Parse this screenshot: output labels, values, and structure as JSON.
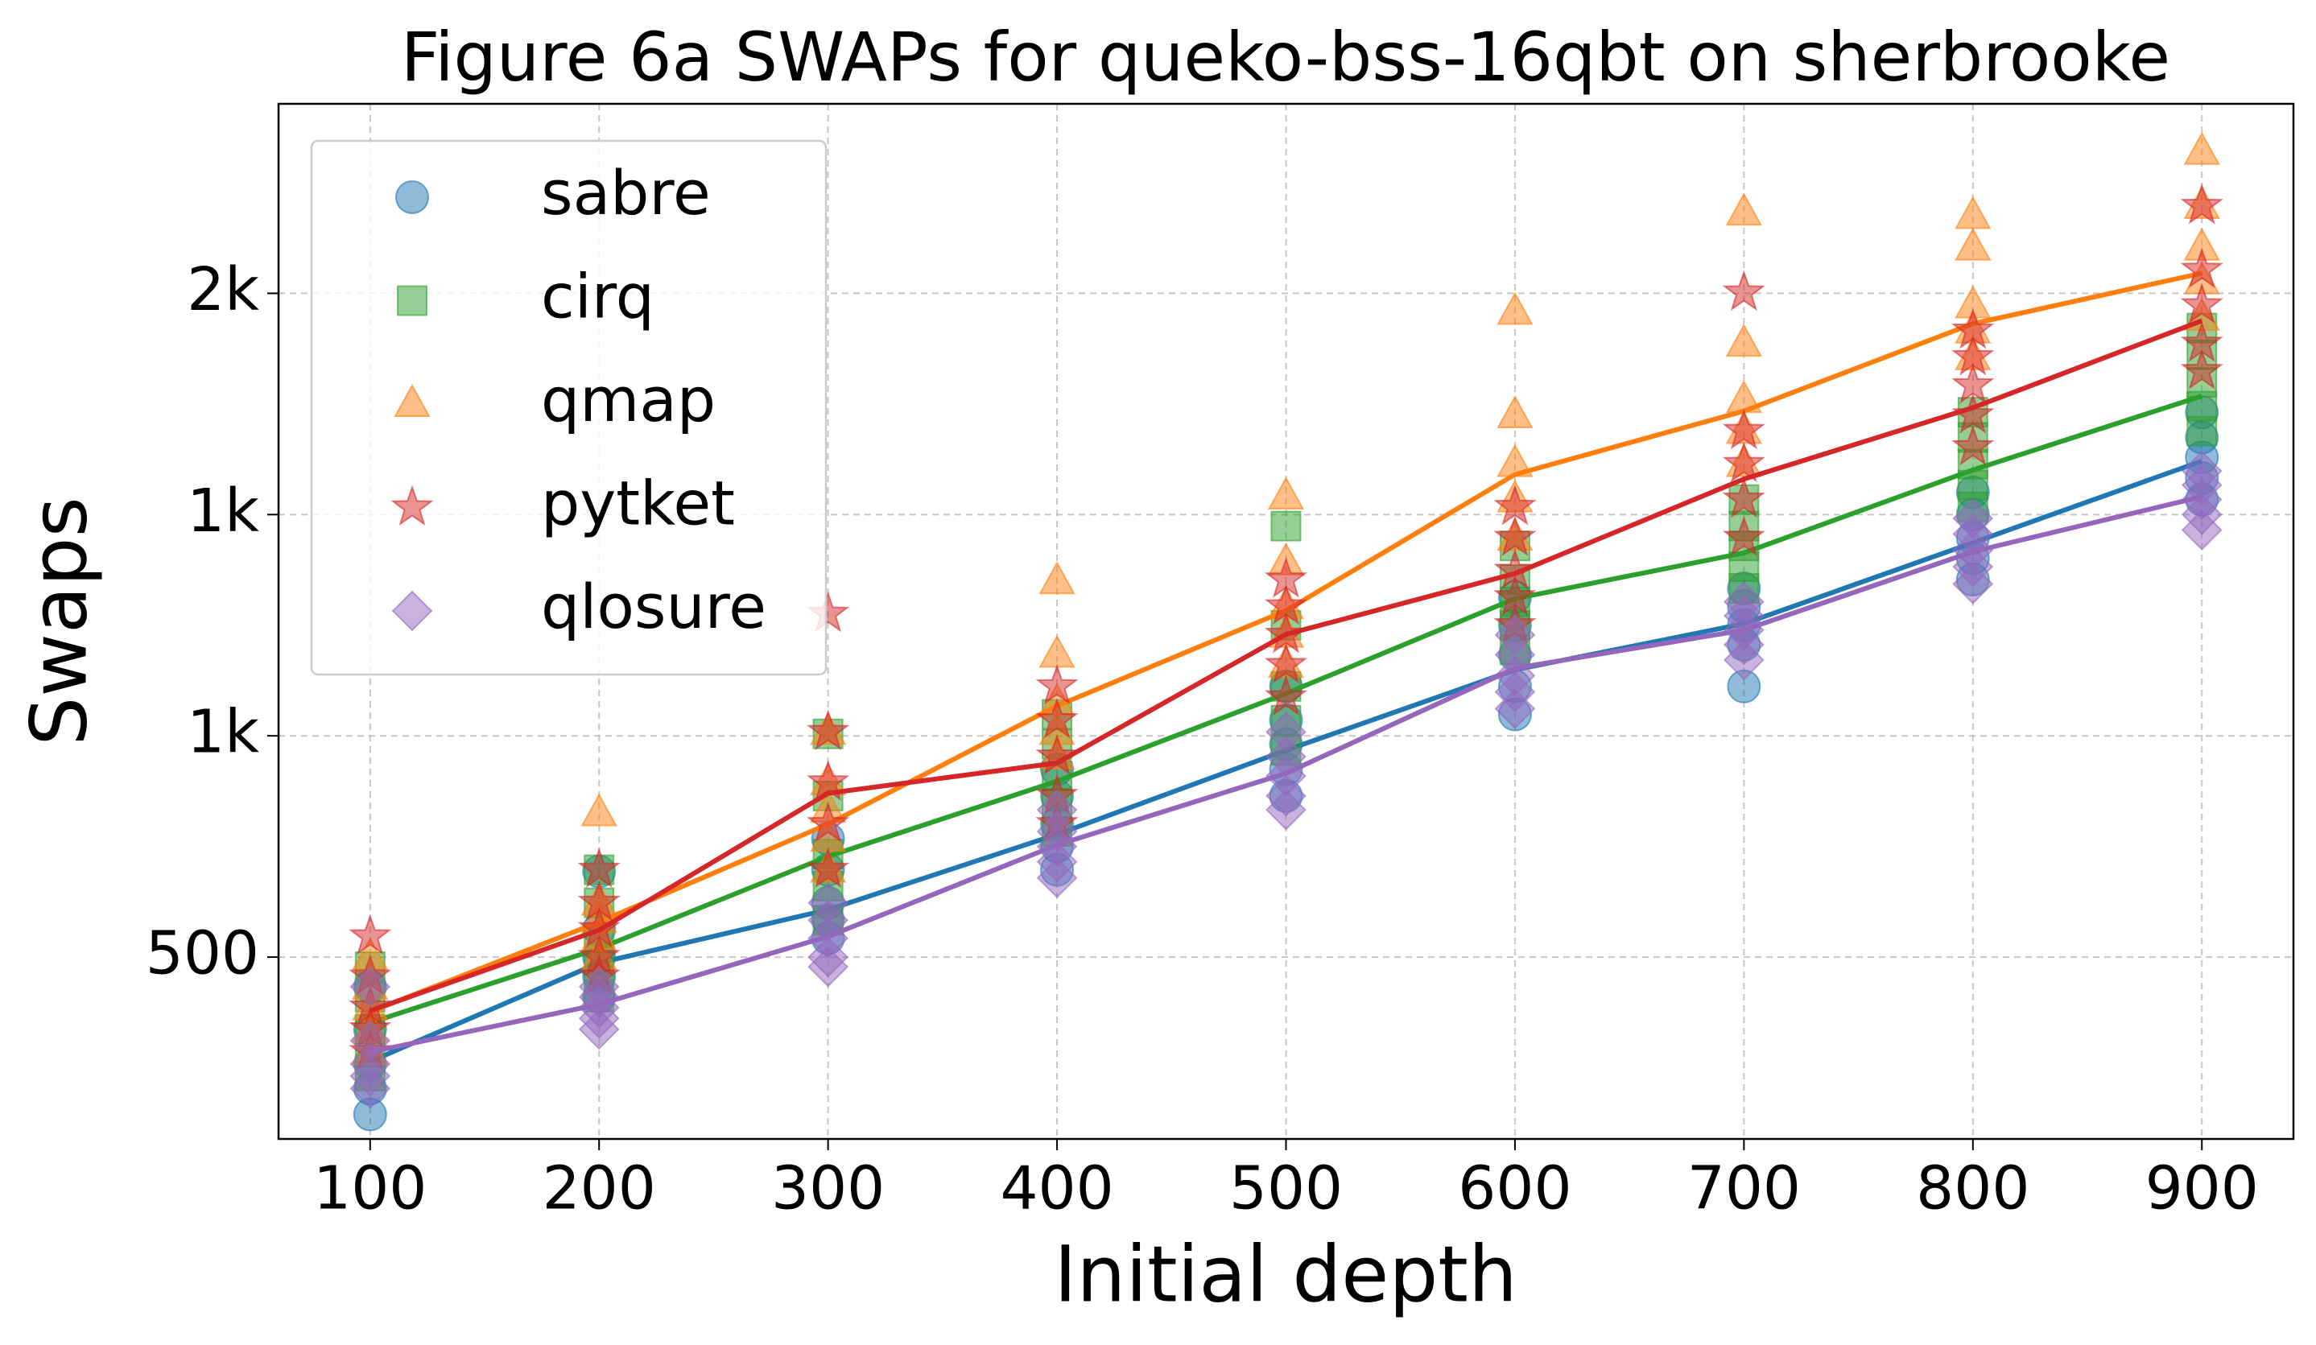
{
  "chart_data": {
    "type": "scatter-line",
    "title": "Figure 6a SWAPs for queko-bss-16qbt on sherbrooke",
    "x_label": "Initial depth",
    "y_label": "Swaps",
    "x": [
      100,
      200,
      300,
      400,
      500,
      600,
      700,
      800,
      900
    ],
    "xlim": [
      60,
      940
    ],
    "xticks": [
      100,
      200,
      300,
      400,
      500,
      600,
      700,
      800,
      900
    ],
    "ylim": [
      342,
      2971
    ],
    "y_scale": "log",
    "yticks": [
      500,
      {
        "value": 793.7,
        "label": "1k"
      },
      {
        "value": 1259.9,
        "label": "1k"
      },
      {
        "value": 2000,
        "label": "2k"
      }
    ],
    "grid": true,
    "legend": "upper left",
    "series": [
      {
        "name": "sabre",
        "color": "#1f77b4",
        "marker": "o",
        "values": [
          402,
          494,
          552,
          646,
          770,
          911,
          1003,
          1188,
          1409
        ],
        "points": {
          "x": [
            100,
            100,
            100,
            100,
            100,
            200,
            200,
            200,
            200,
            200,
            300,
            300,
            300,
            300,
            300,
            400,
            400,
            400,
            400,
            400,
            500,
            500,
            500,
            500,
            500,
            600,
            600,
            600,
            600,
            600,
            700,
            700,
            700,
            700,
            700,
            800,
            800,
            800,
            800,
            800,
            900,
            900,
            900,
            900,
            900
          ],
          "y": [
            360,
            380,
            400,
            430,
            470,
            460,
            480,
            500,
            530,
            598,
            520,
            540,
            560,
            600,
            640,
            600,
            630,
            660,
            700,
            740,
            700,
            740,
            780,
            820,
            880,
            830,
            880,
            940,
            1000,
            1060,
            880,
            960,
            1000,
            1040,
            1080,
            1100,
            1150,
            1200,
            1260,
            1320,
            1300,
            1360,
            1420,
            1480,
            1560
          ]
        }
      },
      {
        "name": "cirq",
        "color": "#2ca02c",
        "marker": "s",
        "values": [
          436,
          509,
          617,
          722,
          867,
          1057,
          1163,
          1383,
          1614
        ],
        "points": {
          "x": [
            100,
            100,
            100,
            100,
            100,
            200,
            200,
            200,
            200,
            200,
            300,
            300,
            300,
            300,
            300,
            400,
            400,
            400,
            400,
            400,
            500,
            500,
            500,
            500,
            500,
            600,
            600,
            600,
            600,
            600,
            700,
            700,
            700,
            700,
            700,
            800,
            800,
            800,
            800,
            800,
            900,
            900,
            900,
            900,
            900
          ],
          "y": [
            390,
            410,
            430,
            460,
            490,
            460,
            490,
            520,
            560,
            600,
            540,
            580,
            620,
            700,
            797,
            650,
            690,
            730,
            780,
            830,
            770,
            820,
            880,
            1000,
            1230,
            950,
            1000,
            1050,
            1100,
            1180,
            1080,
            1130,
            1180,
            1230,
            1300,
            1280,
            1340,
            1400,
            1480,
            1560,
            1500,
            1580,
            1660,
            1760,
            1860
          ]
        }
      },
      {
        "name": "qmap",
        "color": "#ff7f0e",
        "marker": "^",
        "values": [
          446,
          538,
          660,
          845,
          1031,
          1370,
          1564,
          1877,
          2086
        ],
        "points": {
          "x": [
            100,
            100,
            100,
            100,
            100,
            200,
            200,
            200,
            200,
            200,
            300,
            300,
            300,
            300,
            300,
            400,
            400,
            400,
            400,
            400,
            500,
            500,
            500,
            500,
            500,
            600,
            600,
            600,
            600,
            600,
            700,
            700,
            700,
            700,
            700,
            800,
            800,
            800,
            800,
            800,
            900,
            900,
            900,
            900,
            900
          ],
          "y": [
            410,
            430,
            450,
            470,
            500,
            500,
            520,
            540,
            560,
            675,
            600,
            640,
            680,
            720,
            800,
            760,
            800,
            850,
            940,
            1096,
            920,
            980,
            1040,
            1140,
            1308,
            1200,
            1300,
            1400,
            1550,
            1924,
            1400,
            1500,
            1600,
            1800,
            2367,
            1750,
            1850,
            1950,
            2200,
            2350,
            1900,
            2050,
            2200,
            2400,
            2687
          ]
        }
      },
      {
        "name": "pytket",
        "color": "#d62728",
        "marker": "*",
        "values": [
          447,
          529,
          704,
          750,
          981,
          1114,
          1357,
          1575,
          1889
        ],
        "points": {
          "x": [
            100,
            100,
            100,
            100,
            100,
            200,
            200,
            200,
            200,
            200,
            300,
            300,
            300,
            300,
            300,
            400,
            400,
            400,
            400,
            400,
            500,
            500,
            500,
            500,
            500,
            600,
            600,
            600,
            600,
            600,
            700,
            700,
            700,
            700,
            700,
            800,
            800,
            800,
            800,
            800,
            900,
            900,
            900,
            900,
            900
          ],
          "y": [
            410,
            430,
            450,
            480,
            522,
            480,
            500,
            530,
            560,
            600,
            600,
            660,
            720,
            800,
            1024,
            660,
            700,
            760,
            820,
            880,
            860,
            920,
            980,
            1040,
            1100,
            1000,
            1060,
            1120,
            1200,
            1280,
            1200,
            1300,
            1400,
            1500,
            2003,
            1450,
            1550,
            1650,
            1750,
            1850,
            1700,
            1800,
            1950,
            2100,
            2400
          ]
        }
      },
      {
        "name": "qlosure",
        "color": "#9467bd",
        "marker": "D",
        "values": [
          410,
          453,
          522,
          632,
          734,
          914,
          990,
          1166,
          1308
        ],
        "points": {
          "x": [
            100,
            100,
            100,
            100,
            100,
            200,
            200,
            200,
            200,
            200,
            300,
            300,
            300,
            300,
            300,
            400,
            400,
            400,
            400,
            400,
            500,
            500,
            500,
            500,
            500,
            600,
            600,
            600,
            600,
            600,
            700,
            700,
            700,
            700,
            700,
            800,
            800,
            800,
            800,
            800,
            900,
            900,
            900,
            900,
            900
          ],
          "y": [
            380,
            390,
            400,
            420,
            470,
            430,
            440,
            450,
            460,
            470,
            490,
            500,
            520,
            540,
            560,
            590,
            610,
            630,
            650,
            680,
            680,
            700,
            730,
            760,
            800,
            840,
            870,
            900,
            940,
            980,
            930,
            960,
            990,
            1020,
            1050,
            1090,
            1130,
            1170,
            1210,
            1250,
            1220,
            1260,
            1300,
            1340,
            1380
          ]
        }
      }
    ]
  }
}
